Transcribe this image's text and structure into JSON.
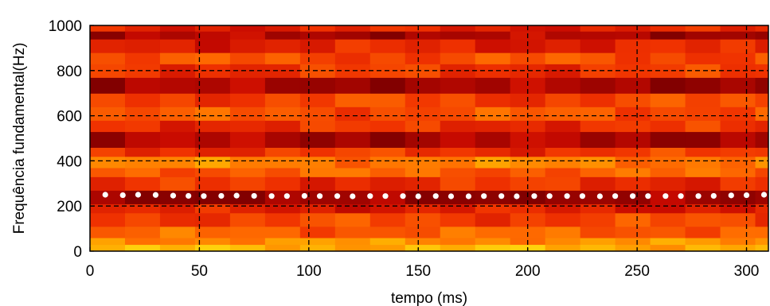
{
  "chart_data": {
    "type": "heatmap",
    "title": "",
    "xlabel": "tempo (ms)",
    "ylabel": "Frequência fundamental(Hz)",
    "xlim": [
      0,
      310
    ],
    "ylim": [
      0,
      1000
    ],
    "x_ticks": [
      "0",
      "50",
      "100",
      "150",
      "200",
      "250",
      "300"
    ],
    "x_tick_values": [
      0,
      50,
      100,
      150,
      200,
      250,
      300
    ],
    "y_ticks": [
      "0",
      "200",
      "400",
      "600",
      "800",
      "1000"
    ],
    "y_tick_values": [
      0,
      200,
      400,
      600,
      800,
      1000
    ],
    "grid": true,
    "colormap": "hot",
    "colors": {
      "background": "#ffffff",
      "dark_red": "#a00000",
      "red": "#e51900",
      "orange": "#ff6a00",
      "light_orange": "#ffa000",
      "yellow": "#ffdd00",
      "pitch_marker": "#ffffff",
      "grid_line": "#000000"
    },
    "pitch_series": {
      "name": "",
      "x": [
        7,
        15,
        22,
        30,
        38,
        45,
        52,
        60,
        67,
        75,
        83,
        90,
        98,
        105,
        113,
        120,
        128,
        135,
        143,
        150,
        158,
        165,
        173,
        180,
        188,
        195,
        203,
        210,
        218,
        225,
        233,
        240,
        248,
        255,
        263,
        270,
        278,
        285,
        293,
        300,
        308
      ],
      "y": [
        250,
        248,
        250,
        249,
        246,
        245,
        244,
        245,
        246,
        245,
        244,
        244,
        245,
        244,
        244,
        243,
        244,
        244,
        244,
        243,
        244,
        243,
        243,
        244,
        244,
        243,
        244,
        244,
        244,
        244,
        243,
        244,
        244,
        244,
        244,
        244,
        244,
        245,
        247,
        248,
        250
      ]
    },
    "spectral_bands": [
      {
        "from": 0,
        "to": 30,
        "level": 0.82
      },
      {
        "from": 30,
        "to": 60,
        "level": 0.7
      },
      {
        "from": 60,
        "to": 110,
        "level": 0.55
      },
      {
        "from": 110,
        "to": 170,
        "level": 0.45
      },
      {
        "from": 170,
        "to": 210,
        "level": 0.3
      },
      {
        "from": 210,
        "to": 270,
        "level": 0.05
      },
      {
        "from": 270,
        "to": 330,
        "level": 0.38
      },
      {
        "from": 330,
        "to": 370,
        "level": 0.55
      },
      {
        "from": 370,
        "to": 420,
        "level": 0.65
      },
      {
        "from": 420,
        "to": 460,
        "level": 0.4
      },
      {
        "from": 460,
        "to": 530,
        "level": 0.12
      },
      {
        "from": 530,
        "to": 580,
        "level": 0.38
      },
      {
        "from": 580,
        "to": 640,
        "level": 0.5
      },
      {
        "from": 640,
        "to": 700,
        "level": 0.45
      },
      {
        "from": 700,
        "to": 770,
        "level": 0.1
      },
      {
        "from": 770,
        "to": 830,
        "level": 0.4
      },
      {
        "from": 830,
        "to": 880,
        "level": 0.48
      },
      {
        "from": 880,
        "to": 940,
        "level": 0.32
      },
      {
        "from": 940,
        "to": 975,
        "level": 0.12
      },
      {
        "from": 975,
        "to": 1000,
        "level": 0.32
      }
    ]
  }
}
